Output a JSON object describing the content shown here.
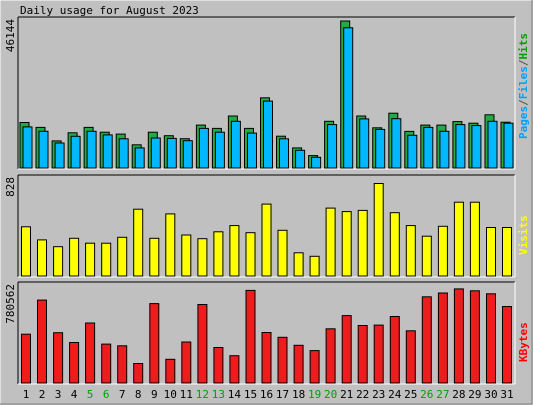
{
  "chart_data": {
    "type": "bar",
    "title": "Daily usage for August 2023",
    "categories": [
      "1",
      "2",
      "3",
      "4",
      "5",
      "6",
      "7",
      "8",
      "9",
      "10",
      "11",
      "12",
      "13",
      "14",
      "15",
      "16",
      "17",
      "18",
      "19",
      "20",
      "21",
      "22",
      "23",
      "24",
      "25",
      "26",
      "27",
      "28",
      "29",
      "30",
      "31"
    ],
    "weekend_days": [
      "5",
      "6",
      "12",
      "13",
      "19",
      "20",
      "26",
      "27"
    ],
    "panels": [
      {
        "name": "hits-files-pages",
        "max_label": "46144",
        "ymax": 46144,
        "legend": [
          {
            "text": "Pages",
            "color": "#00a0ff"
          },
          {
            "text": "/",
            "color": "#555555"
          },
          {
            "text": "Files",
            "color": "#00a0ff"
          },
          {
            "text": "/",
            "color": "#555555"
          },
          {
            "text": "Hits",
            "color": "#00a000"
          }
        ],
        "series": [
          {
            "name": "Hits",
            "color": "#22aa44",
            "values": [
              14270,
              12760,
              8510,
              11050,
              12760,
              11230,
              10630,
              7280,
              11230,
              10130,
              9200,
              13470,
              12430,
              16320,
              12430,
              22040,
              9990,
              6310,
              3890,
              14670,
              46144,
              16320,
              12610,
              17210,
              11500,
              13470,
              13470,
              14580,
              14060,
              16690,
              14370
            ]
          },
          {
            "name": "Files",
            "color": "#00b8ff",
            "values": [
              12900,
              11520,
              7840,
              9940,
              11520,
              10390,
              9170,
              6310,
              9420,
              9290,
              8580,
              12430,
              11240,
              14670,
              10940,
              21000,
              9170,
              5570,
              3370,
              13620,
              44020,
              15420,
              12130,
              15490,
              10270,
              12760,
              11520,
              13620,
              13320,
              14670,
              14060
            ]
          }
        ]
      },
      {
        "name": "visits",
        "max_label": "828",
        "ymax": 828,
        "legend": [
          {
            "text": "Visits",
            "color": "#ffff00"
          }
        ],
        "series": [
          {
            "name": "Visits",
            "color": "#ffff00",
            "values": [
              420,
              308,
              250,
              322,
              280,
              280,
              330,
              570,
              322,
              530,
              350,
              318,
              377,
              430,
              370,
              614,
              390,
              198,
              168,
              580,
              550,
              560,
              790,
              540,
              430,
              340,
              424,
              630,
              630,
              414,
              414
            ]
          }
        ]
      },
      {
        "name": "kbytes",
        "max_label": "780562",
        "ymax": 780562,
        "legend": [
          {
            "text": "KBytes",
            "color": "#ff0000"
          }
        ],
        "series": [
          {
            "name": "KBytes",
            "color": "#ee1c1c",
            "values": [
              393000,
              667000,
              405000,
              326000,
              483000,
              313000,
              299000,
              157000,
              639000,
              191000,
              330000,
              632000,
              286000,
              220000,
              745000,
              406000,
              368000,
              303000,
              261000,
              436000,
              542000,
              463000,
              466000,
              535000,
              420000,
              694000,
              724000,
              757000,
              742000,
              718000,
              616000
            ]
          }
        ]
      }
    ]
  }
}
